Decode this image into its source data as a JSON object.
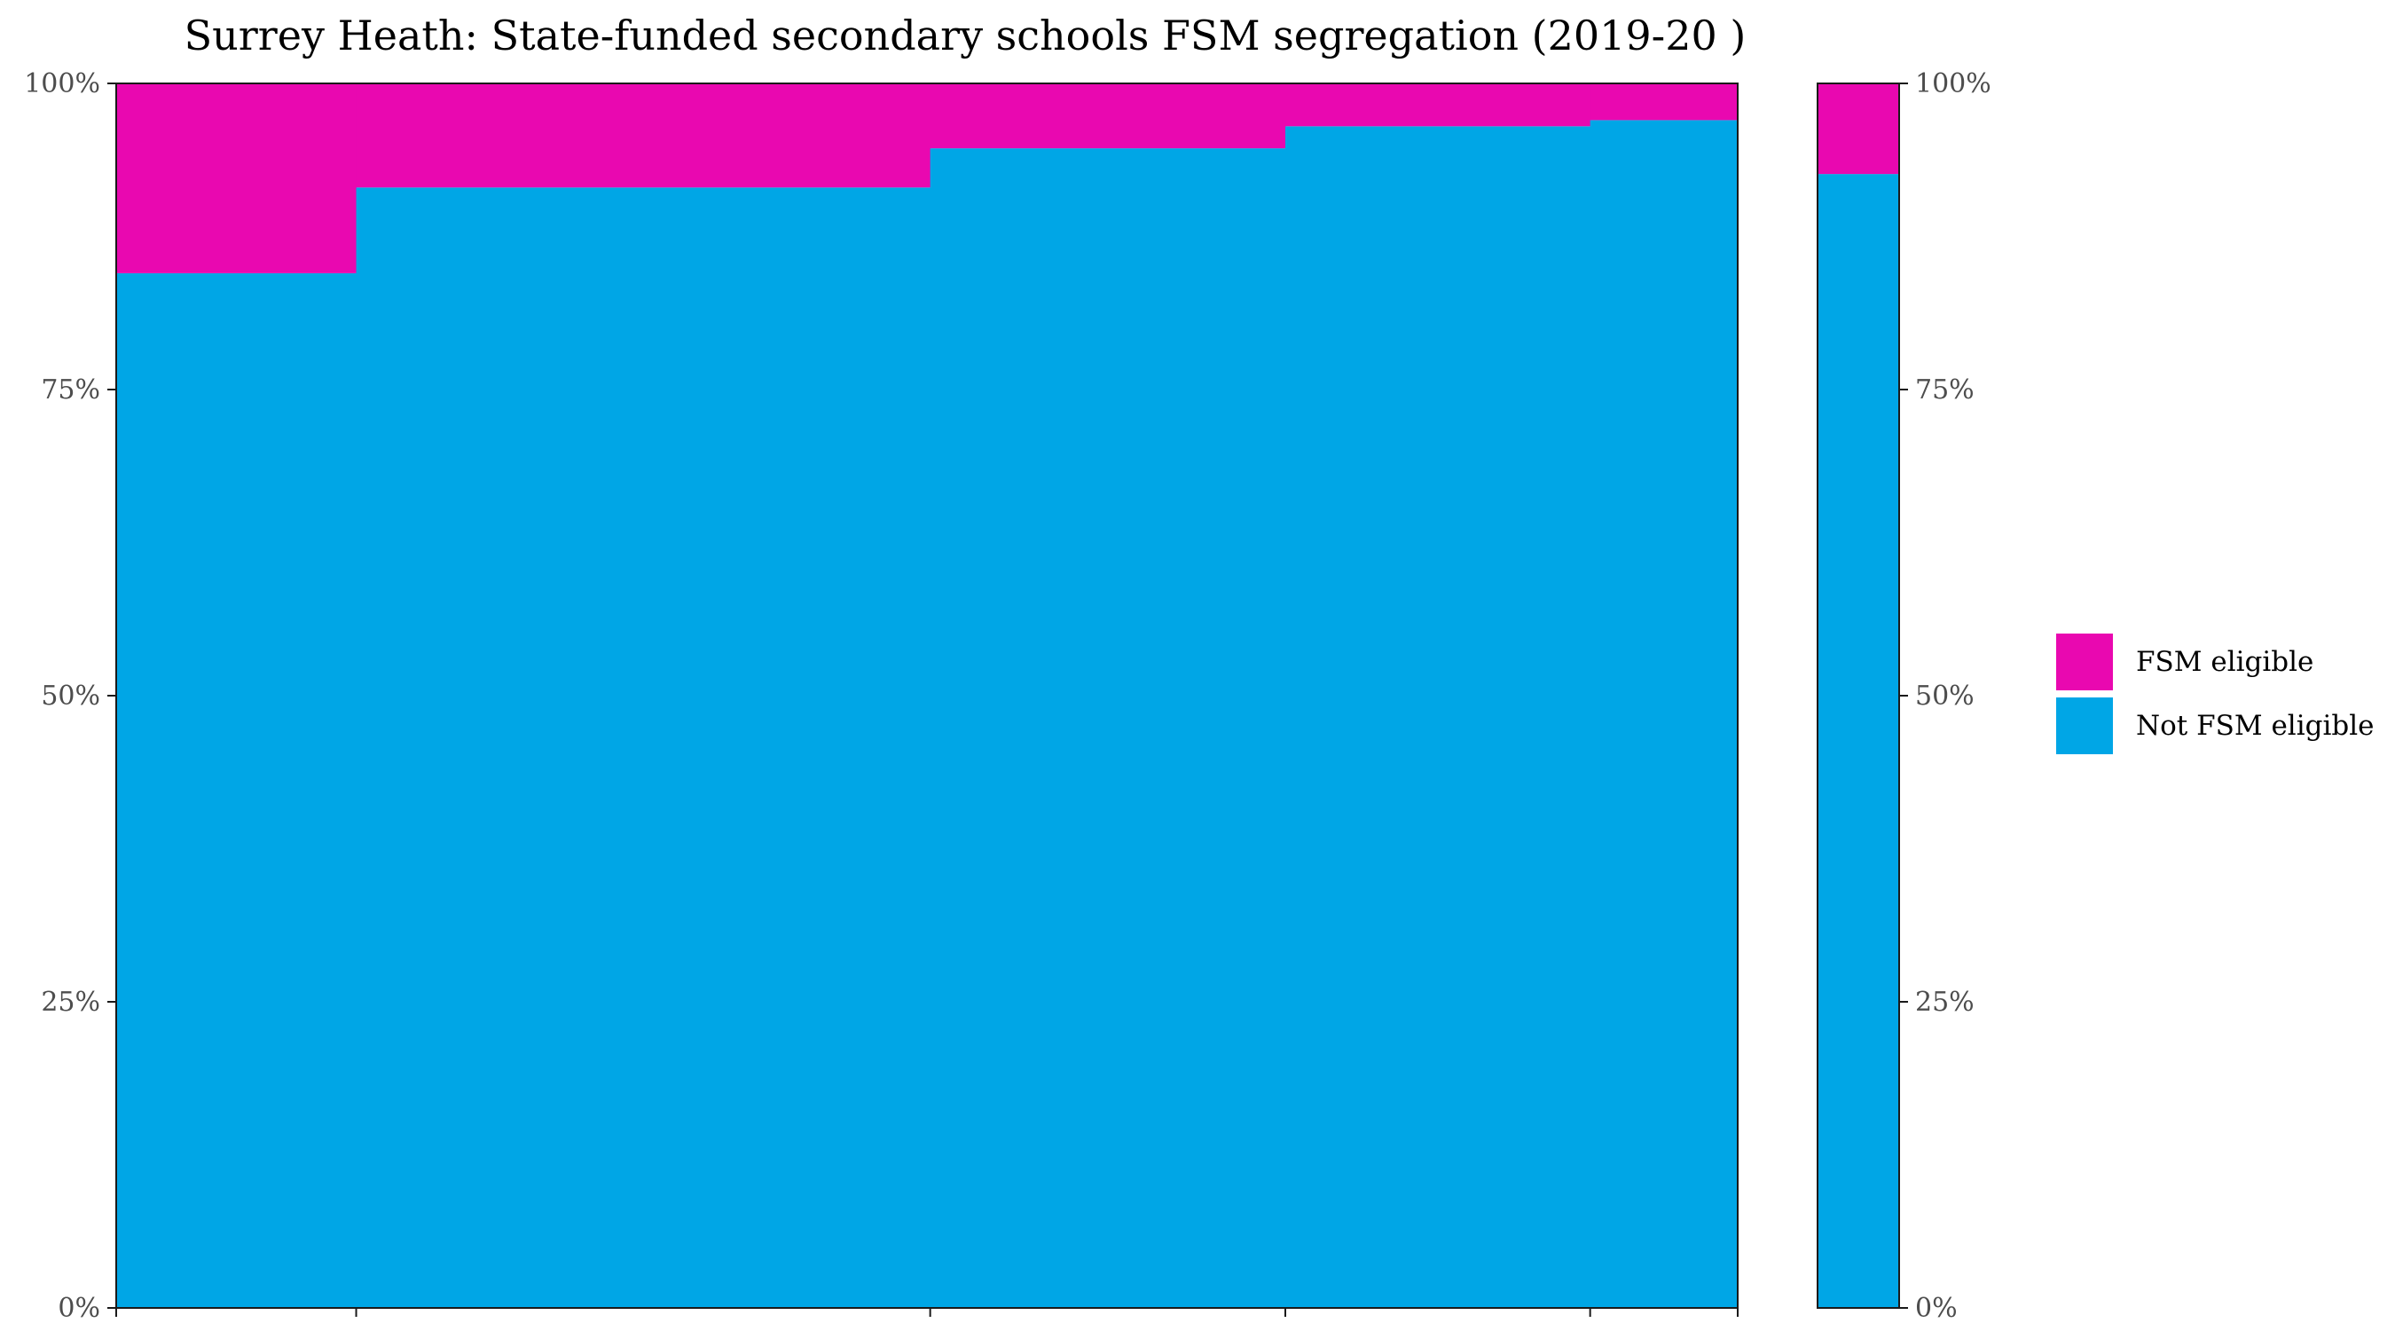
{
  "chart_data": {
    "type": "bar",
    "title": "Surrey Heath: State-funded secondary schools FSM segregation (2019-20 )",
    "xlabel": "",
    "ylabel": "",
    "ylim": [
      0,
      1
    ],
    "yticks": [
      {
        "value": 0,
        "label": "0%"
      },
      {
        "value": 0.25,
        "label": "25%"
      },
      {
        "value": 0.5,
        "label": "50%"
      },
      {
        "value": 0.75,
        "label": "75%"
      },
      {
        "value": 1,
        "label": "100%"
      }
    ],
    "grid": false,
    "legend_position": "right",
    "series": [
      {
        "name": "FSM eligible",
        "color": "#e908b0"
      },
      {
        "name": "Not FSM eligible",
        "color": "#00a6e6"
      }
    ],
    "schools": [
      {
        "width": 0.148,
        "fsm_share": 0.155
      },
      {
        "width": 0.354,
        "fsm_share": 0.085
      },
      {
        "width": 0.219,
        "fsm_share": 0.053
      },
      {
        "width": 0.188,
        "fsm_share": 0.035
      },
      {
        "width": 0.091,
        "fsm_share": 0.03
      }
    ],
    "overall": {
      "fsm_share": 0.074
    }
  }
}
